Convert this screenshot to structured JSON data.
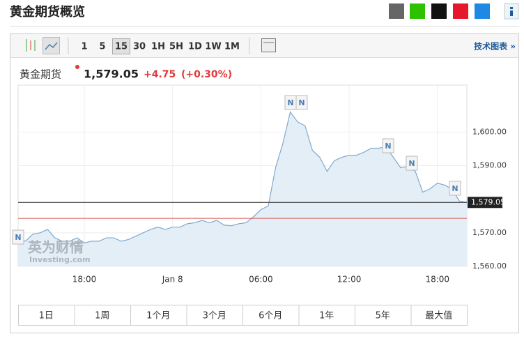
{
  "header": {
    "title": "黄金期货概览"
  },
  "toolbar": {
    "intervals": [
      "1",
      "5",
      "15",
      "30",
      "1H",
      "5H",
      "1D",
      "1W",
      "1M"
    ],
    "selected_interval": "15",
    "link": "技术图表 »"
  },
  "quote": {
    "name": "黄金期货",
    "price": "1,579.05",
    "change": "+4.75",
    "change_pct": "(+0.30%)"
  },
  "watermark": {
    "brand": "英为财情",
    "site": "Investing.com"
  },
  "news_markers": [
    "N",
    "N",
    "N",
    "N",
    "N",
    "N"
  ],
  "ranges": [
    "1日",
    "1周",
    "1个月",
    "3个月",
    "6个月",
    "1年",
    "5年",
    "最大值"
  ],
  "chart_data": {
    "type": "area",
    "categories": [
      null,
      null,
      null,
      null,
      null,
      null,
      null,
      null,
      null,
      "18:00",
      null,
      null,
      null,
      null,
      null,
      null,
      null,
      null,
      null,
      null,
      null,
      "Jan 8",
      null,
      null,
      null,
      null,
      null,
      null,
      null,
      null,
      null,
      null,
      null,
      "06:00",
      null,
      null,
      null,
      null,
      null,
      null,
      null,
      null,
      null,
      null,
      null,
      "12:00",
      null,
      null,
      null,
      null,
      null,
      null,
      null,
      null,
      null,
      null,
      null,
      "18:00",
      null,
      null,
      null,
      null
    ],
    "values": [
      1568.5,
      1567.5,
      1569.6,
      1570,
      1571,
      1568.5,
      1567.5,
      1567.5,
      1568.5,
      1567,
      1567.5,
      1567.5,
      1568.5,
      1568.5,
      1567.5,
      1568,
      1569,
      1570,
      1571,
      1571.7,
      1571,
      1571.7,
      1571.7,
      1572.7,
      1573,
      1573.7,
      1573,
      1573.7,
      1572.3,
      1572.1,
      1572.7,
      1573,
      1574.8,
      1576.9,
      1578,
      1589.4,
      1596.7,
      1606,
      1603,
      1601.9,
      1594.6,
      1592.5,
      1588.3,
      1591.5,
      1592.5,
      1593.1,
      1593.1,
      1594,
      1595.2,
      1595.2,
      1595.6,
      1592.5,
      1589.4,
      1589.8,
      1588.3,
      1582.1,
      1583.1,
      1584.8,
      1584.2,
      1583.1,
      1579.4,
      1579.05
    ],
    "color": "#7fa9cf",
    "fill": "#e4eef6",
    "previous_close": 1574.3,
    "previous_close_color": "#d9534f",
    "ylim": [
      1560,
      1614
    ],
    "yticks": [
      {
        "value": 1560,
        "label": "1,560.00"
      },
      {
        "value": 1570,
        "label": "1,570.00"
      },
      {
        "value": 1590,
        "label": "1,590.00"
      },
      {
        "value": 1600,
        "label": "1,600.00"
      }
    ],
    "grid": true
  }
}
